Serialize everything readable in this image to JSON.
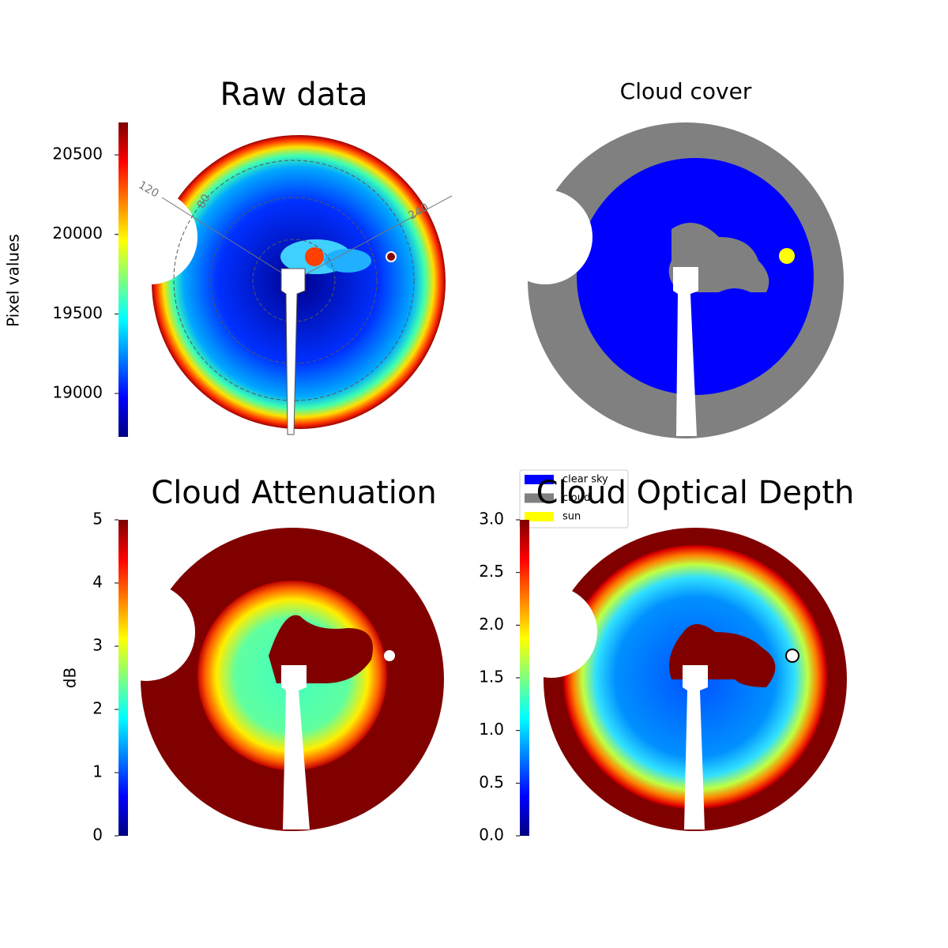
{
  "chart_data": [
    {
      "type": "image",
      "title": "Raw data",
      "colormap": "jet",
      "colorbar_label": "Pixel values",
      "ylim": [
        18727,
        20704
      ],
      "yticks": [
        19000,
        19500,
        20000,
        20500
      ],
      "annotations": [
        "120",
        "80",
        "240"
      ]
    },
    {
      "type": "image",
      "title": "Cloud cover",
      "series": [
        {
          "name": "clear sky",
          "color": "#0000ff"
        },
        {
          "name": "cloud",
          "color": "#808080"
        },
        {
          "name": "sun",
          "color": "#ffff00"
        }
      ]
    },
    {
      "type": "image",
      "title": "Cloud Attenuation",
      "colormap": "jet",
      "colorbar_label": "dB",
      "ylim": [
        0,
        5
      ],
      "yticks": [
        0,
        1,
        2,
        3,
        4,
        5
      ]
    },
    {
      "type": "image",
      "title": "Cloud Optical Depth",
      "colormap": "jet",
      "ylim": [
        0,
        3
      ],
      "yticks": [
        {
          "value": 0,
          "label": "0.0"
        },
        0.5,
        {
          "value": 1,
          "label": "1.0"
        },
        1.5,
        {
          "value": 2,
          "label": "2.0"
        },
        2.5,
        {
          "value": 3,
          "label": "3.0"
        }
      ]
    }
  ]
}
